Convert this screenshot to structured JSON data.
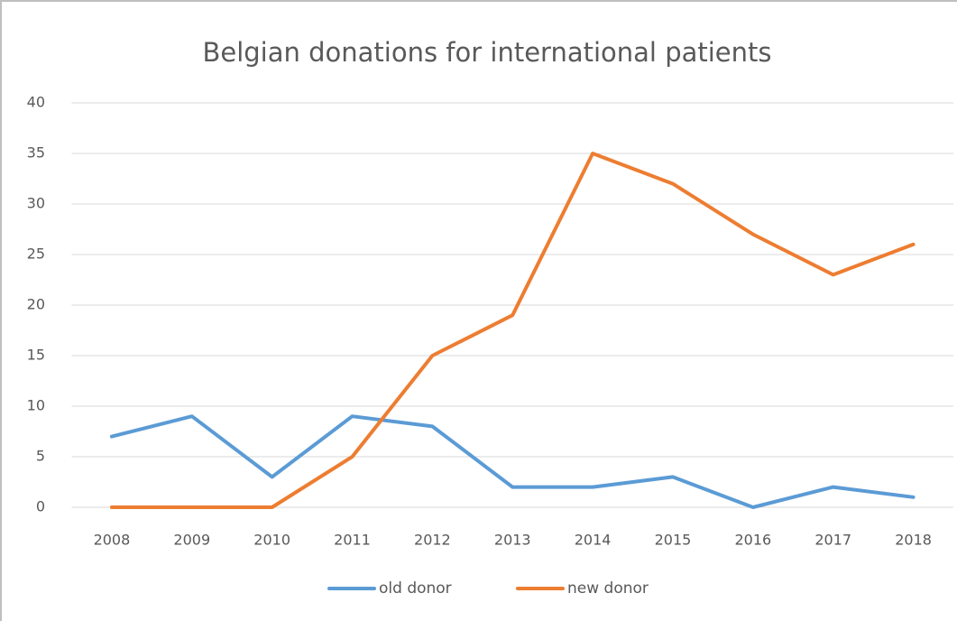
{
  "chart_data": {
    "type": "line",
    "title": "Belgian donations for international patients",
    "categories": [
      "2008",
      "2009",
      "2010",
      "2011",
      "2012",
      "2013",
      "2014",
      "2015",
      "2016",
      "2017",
      "2018"
    ],
    "series": [
      {
        "name": "old donor",
        "color": "#5b9bd5",
        "values": [
          7,
          9,
          3,
          9,
          8,
          2,
          2,
          3,
          0,
          2,
          1
        ]
      },
      {
        "name": "new donor",
        "color": "#ed7d31",
        "values": [
          0,
          0,
          0,
          5,
          15,
          19,
          35,
          32,
          27,
          23,
          26
        ]
      }
    ],
    "ylim": [
      0,
      40
    ],
    "yticks": [
      0,
      5,
      10,
      15,
      20,
      25,
      30,
      35,
      40
    ],
    "grid": true,
    "legend": "bottom"
  }
}
